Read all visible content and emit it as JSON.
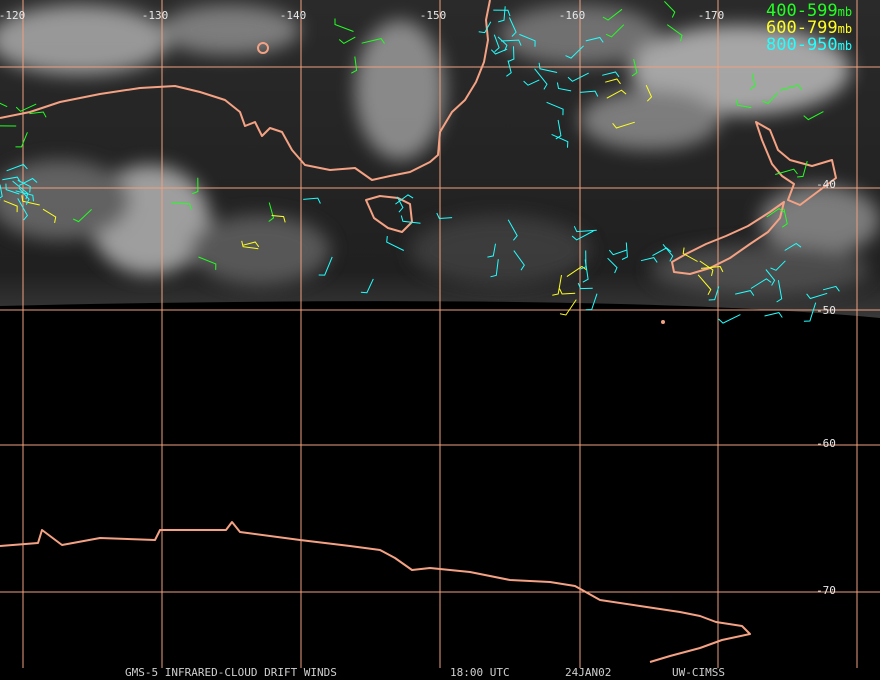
{
  "map": {
    "longitude_labels": [
      "-120",
      "-130",
      "-140",
      "-150",
      "-160",
      "-170"
    ],
    "latitude_labels": [
      "-40",
      "-50",
      "-60",
      "-70"
    ],
    "legend": [
      {
        "range": "400-599",
        "unit": "mb"
      },
      {
        "range": "600-799",
        "unit": "mb"
      },
      {
        "range": "800-950",
        "unit": "mb"
      }
    ],
    "footer": {
      "product": "GMS-5 INFRARED-CLOUD DRIFT WINDS",
      "time": "18:00 UTC",
      "date": "24JAN02",
      "source": "UW-CIMSS"
    }
  }
}
